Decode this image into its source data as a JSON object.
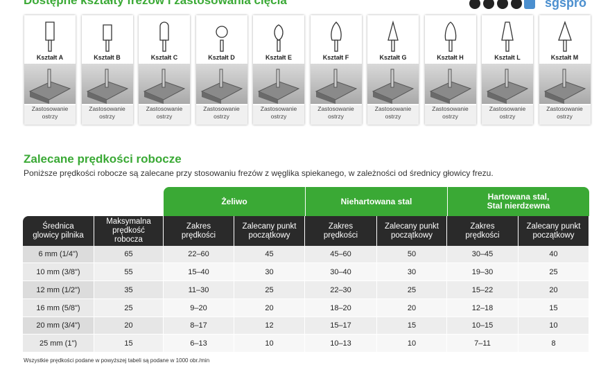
{
  "header": {
    "title": "Dostępne kształty frezów i zastosowania cięcia",
    "logo": "sgspro"
  },
  "shapes": [
    {
      "label": "Kształt A",
      "caption": "Zastosowanie ostrzy"
    },
    {
      "label": "Kształt B",
      "caption": "Zastosowanie ostrzy"
    },
    {
      "label": "Kształt C",
      "caption": "Zastosowanie ostrzy"
    },
    {
      "label": "Kształt D",
      "caption": "Zastosowanie ostrzy"
    },
    {
      "label": "Kształt E",
      "caption": "Zastosowanie ostrzy"
    },
    {
      "label": "Kształt F",
      "caption": "Zastosowanie ostrzy"
    },
    {
      "label": "Kształt G",
      "caption": "Zastosowanie ostrzy"
    },
    {
      "label": "Kształt H",
      "caption": "Zastosowanie ostrzy"
    },
    {
      "label": "Kształt L",
      "caption": "Zastosowanie ostrzy"
    },
    {
      "label": "Kształt M",
      "caption": "Zastosowanie ostrzy"
    }
  ],
  "section": {
    "title": "Zalecane prędkości robocze",
    "subtitle": "Poniższe prędkości robocze są zalecane przy stosowaniu frezów z węglika spiekanego, w zależności od średnicy głowicy frezu."
  },
  "table": {
    "groups": [
      "Żeliwo",
      "Niehartowana stal",
      "Hartowana stal,\nStal nierdzewna"
    ],
    "columns": [
      "Średnica\nglowicy pilnika",
      "Maksymalna\nprędkość\nrobocza",
      "Zakres\nprędkości",
      "Zalecany punkt\npoczątkowy",
      "Zakres\nprędkości",
      "Zalecany punkt\npoczątkowy",
      "Zakres\nprędkości",
      "Zalecany punkt\npoczątkowy"
    ],
    "rows": [
      [
        "6 mm (1/4\")",
        65,
        "22–60",
        45,
        "45–60",
        50,
        "30–45",
        40
      ],
      [
        "10 mm (3/8\")",
        55,
        "15–40",
        30,
        "30–40",
        30,
        "19–30",
        25
      ],
      [
        "12 mm (1/2\")",
        35,
        "11–30",
        25,
        "22–30",
        25,
        "15–22",
        20
      ],
      [
        "16 mm (5/8\")",
        25,
        "9–20",
        20,
        "18–20",
        20,
        "12–18",
        15
      ],
      [
        "20 mm (3/4\")",
        20,
        "8–17",
        12,
        "15–17",
        15,
        "10–15",
        10
      ],
      [
        "25 mm (1\")",
        15,
        "6–13",
        10,
        "10–13",
        10,
        "7–11",
        8
      ]
    ]
  },
  "footnote": "Wszystkie prędkości podane w powyższej tabeli są podane w 1000 obr./min"
}
